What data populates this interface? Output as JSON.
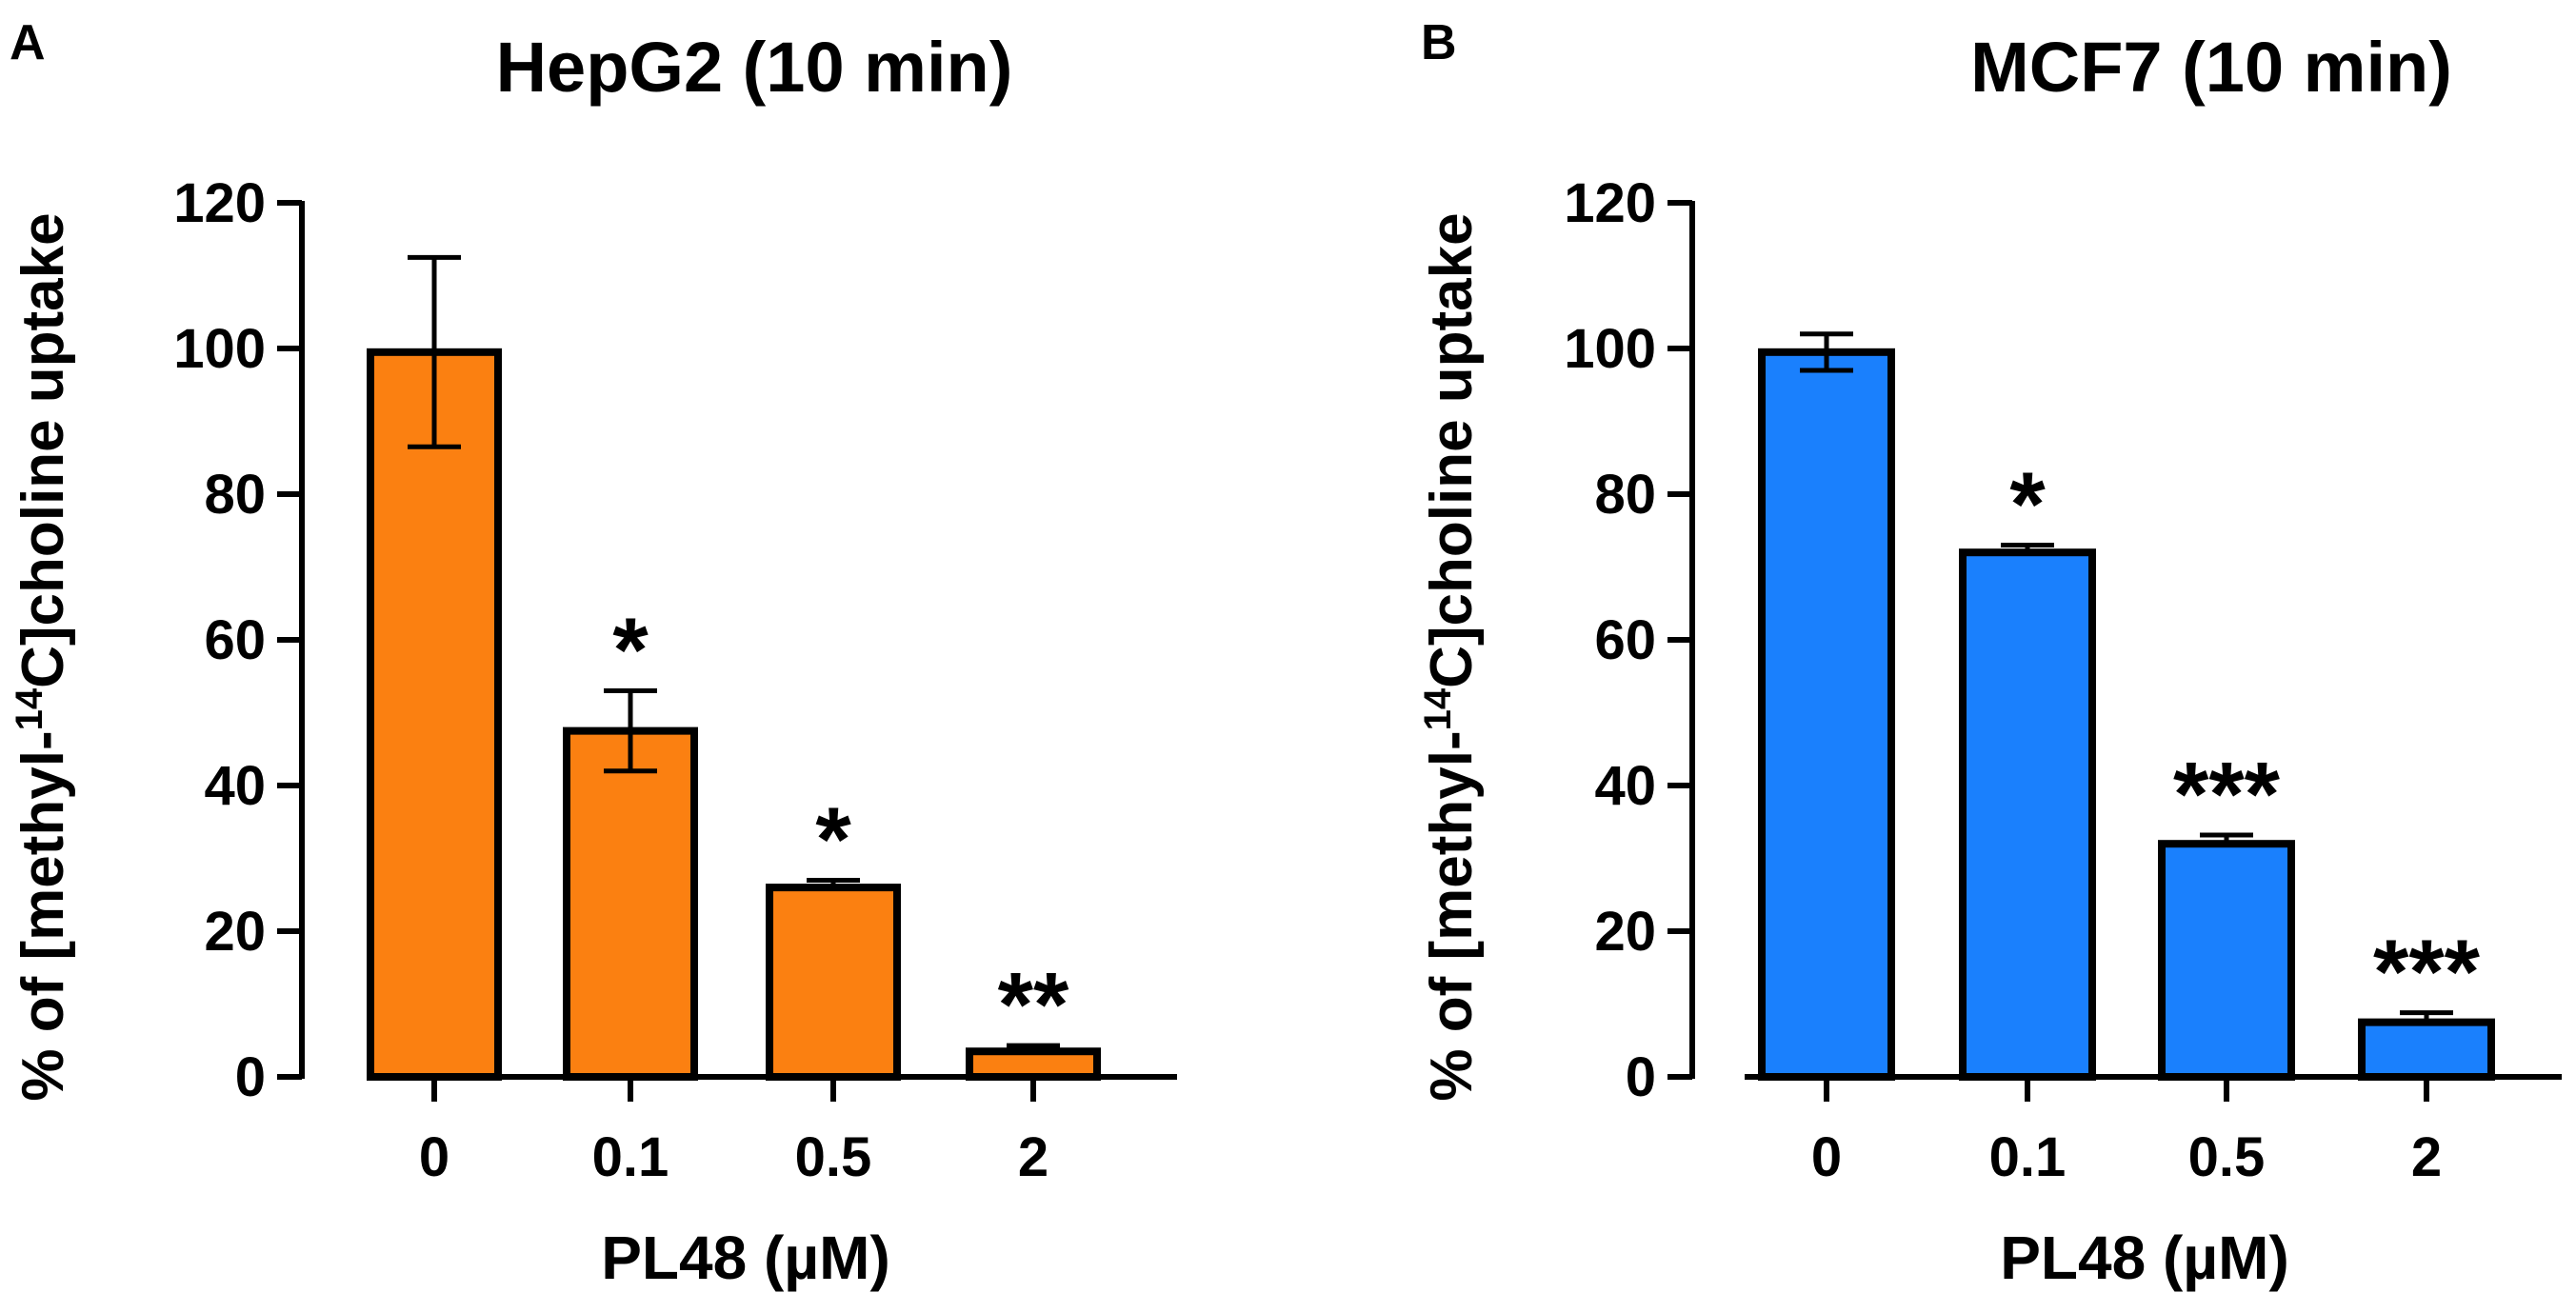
{
  "chart_data": [
    {
      "panel": "A",
      "type": "bar",
      "title": "HepG2 (10 min)",
      "xlabel": "PL48 (µM)",
      "ylabel_parts": {
        "before": "% of [methyl-",
        "superscript": "14",
        "after": "C]choline uptake"
      },
      "categories": [
        "0",
        "0.1",
        "0.5",
        "2"
      ],
      "values": [
        99.5,
        47.5,
        26,
        3.5
      ],
      "errors": [
        13,
        5.5,
        1,
        0.8
      ],
      "significance": [
        "",
        "*",
        "*",
        "**"
      ],
      "yticks": [
        "0",
        "20",
        "40",
        "60",
        "80",
        "100",
        "120"
      ],
      "ylim": [
        0,
        120
      ],
      "color": "#fb8011"
    },
    {
      "panel": "B",
      "type": "bar",
      "title": "MCF7 (10 min)",
      "xlabel": "PL48 (µM)",
      "ylabel_parts": {
        "before": "% of [methyl-",
        "superscript": "14",
        "after": "C]choline uptake"
      },
      "categories": [
        "0",
        "0.1",
        "0.5",
        "2"
      ],
      "values": [
        99.5,
        72,
        32,
        7.5
      ],
      "errors": [
        2.5,
        1,
        1.2,
        1.3
      ],
      "significance": [
        "",
        "*",
        "***",
        "***"
      ],
      "yticks": [
        "0",
        "20",
        "40",
        "60",
        "80",
        "100",
        "120"
      ],
      "ylim": [
        0,
        120
      ],
      "color": "#1a80fd"
    }
  ]
}
